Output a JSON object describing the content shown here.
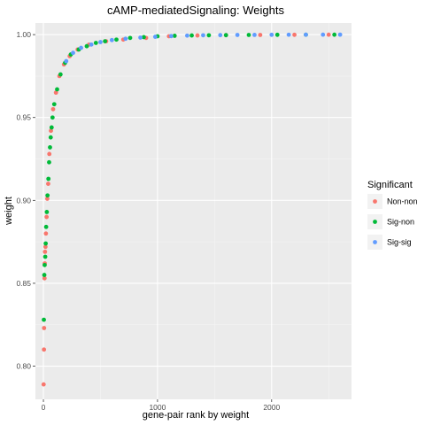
{
  "chart_data": {
    "type": "scatter",
    "title": "cAMP-mediatedSignaling: Weights",
    "xlabel": "gene-pair rank by weight",
    "ylabel": "weight",
    "xlim": [
      -70,
      2700
    ],
    "ylim": [
      0.78,
      1.007
    ],
    "x_ticks": [
      0,
      1000,
      2000
    ],
    "x_tick_labels": [
      "0",
      "1000",
      "2000"
    ],
    "y_ticks": [
      0.8,
      0.85,
      0.9,
      0.95,
      1.0
    ],
    "y_tick_labels": [
      "0.80",
      "0.85",
      "0.90",
      "0.95",
      "1.00"
    ],
    "grid": true,
    "legend_position": "right",
    "legend": {
      "title": "Significant",
      "items": [
        {
          "name": "Non-non",
          "color": "#F8766D"
        },
        {
          "name": "Sig-non",
          "color": "#00BA38"
        },
        {
          "name": "Sig-sig",
          "color": "#619CFF"
        }
      ]
    },
    "series": [
      {
        "name": "Non-non",
        "color": "#F8766D",
        "points": [
          [
            2,
            0.789
          ],
          [
            5,
            0.81
          ],
          [
            6,
            0.823
          ],
          [
            10,
            0.853
          ],
          [
            12,
            0.862
          ],
          [
            14,
            0.869
          ],
          [
            18,
            0.872
          ],
          [
            22,
            0.88
          ],
          [
            28,
            0.89
          ],
          [
            34,
            0.901
          ],
          [
            42,
            0.91
          ],
          [
            52,
            0.928
          ],
          [
            66,
            0.942
          ],
          [
            85,
            0.955
          ],
          [
            110,
            0.965
          ],
          [
            140,
            0.975
          ],
          [
            180,
            0.982
          ],
          [
            230,
            0.987
          ],
          [
            300,
            0.991
          ],
          [
            400,
            0.994
          ],
          [
            550,
            0.996
          ],
          [
            700,
            0.997
          ],
          [
            900,
            0.998
          ],
          [
            1100,
            0.999
          ],
          [
            1350,
            0.9995
          ],
          [
            1600,
            0.9997
          ],
          [
            1900,
            0.9998
          ],
          [
            2200,
            0.9999
          ],
          [
            2500,
            0.99995
          ]
        ]
      },
      {
        "name": "Sig-non",
        "color": "#00BA38",
        "points": [
          [
            4,
            0.828
          ],
          [
            8,
            0.855
          ],
          [
            11,
            0.861
          ],
          [
            16,
            0.866
          ],
          [
            20,
            0.874
          ],
          [
            24,
            0.884
          ],
          [
            30,
            0.893
          ],
          [
            36,
            0.903
          ],
          [
            44,
            0.913
          ],
          [
            50,
            0.923
          ],
          [
            58,
            0.932
          ],
          [
            64,
            0.938
          ],
          [
            72,
            0.944
          ],
          [
            80,
            0.95
          ],
          [
            95,
            0.958
          ],
          [
            120,
            0.967
          ],
          [
            150,
            0.976
          ],
          [
            190,
            0.983
          ],
          [
            240,
            0.988
          ],
          [
            310,
            0.991
          ],
          [
            380,
            0.993
          ],
          [
            460,
            0.995
          ],
          [
            540,
            0.996
          ],
          [
            640,
            0.997
          ],
          [
            760,
            0.998
          ],
          [
            880,
            0.9985
          ],
          [
            1000,
            0.999
          ],
          [
            1150,
            0.9993
          ],
          [
            1300,
            0.9995
          ],
          [
            1450,
            0.9996
          ],
          [
            1600,
            0.9997
          ],
          [
            1800,
            0.9998
          ],
          [
            2050,
            0.9999
          ],
          [
            2300,
            0.99993
          ],
          [
            2550,
            0.99996
          ]
        ]
      },
      {
        "name": "Sig-sig",
        "color": "#619CFF",
        "points": [
          [
            200,
            0.984
          ],
          [
            260,
            0.989
          ],
          [
            330,
            0.992
          ],
          [
            420,
            0.994
          ],
          [
            500,
            0.9955
          ],
          [
            600,
            0.9967
          ],
          [
            720,
            0.9975
          ],
          [
            850,
            0.9982
          ],
          [
            980,
            0.9987
          ],
          [
            1120,
            0.9991
          ],
          [
            1260,
            0.9994
          ],
          [
            1400,
            0.9996
          ],
          [
            1550,
            0.9997
          ],
          [
            1700,
            0.9998
          ],
          [
            1850,
            0.99985
          ],
          [
            2000,
            0.9999
          ],
          [
            2150,
            0.99993
          ],
          [
            2300,
            0.99995
          ],
          [
            2450,
            0.99997
          ],
          [
            2600,
            0.99999
          ]
        ]
      }
    ]
  }
}
